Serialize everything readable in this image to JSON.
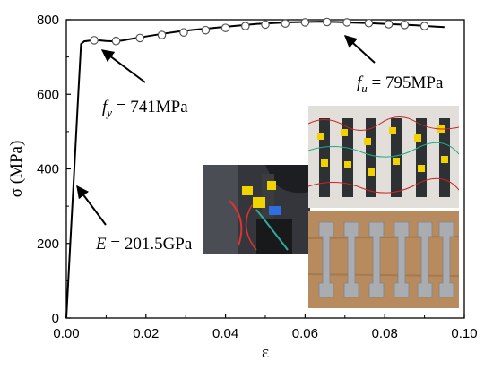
{
  "chart_data": {
    "type": "line",
    "xlabel": "ε",
    "ylabel": "σ (MPa)",
    "xlim": [
      0,
      0.1
    ],
    "ylim": [
      0,
      800
    ],
    "xticks": [
      "0.00",
      "0.02",
      "0.04",
      "0.06",
      "0.08",
      "0.10"
    ],
    "yticks": [
      "0",
      "200",
      "400",
      "600",
      "800"
    ],
    "grid": false,
    "series": [
      {
        "x": [
          0,
          0.001,
          0.002,
          0.003,
          0.0037,
          0.0045,
          0.006,
          0.008,
          0.01,
          0.012,
          0.014,
          0.016,
          0.02,
          0.024,
          0.028,
          0.032,
          0.036,
          0.04,
          0.044,
          0.048,
          0.052,
          0.056,
          0.06,
          0.064,
          0.068,
          0.072,
          0.076,
          0.08,
          0.084,
          0.088,
          0.092,
          0.095
        ],
        "y": [
          0,
          200,
          400,
          600,
          735,
          742,
          744,
          745,
          743,
          742,
          744,
          748,
          755,
          762,
          768,
          773,
          777,
          781,
          785,
          789,
          791,
          793,
          794,
          795,
          794,
          792,
          791,
          789,
          787,
          785,
          782,
          780
        ],
        "markers": {
          "x": [
            0.007,
            0.0125,
            0.0185,
            0.024,
            0.0295,
            0.035,
            0.04,
            0.045,
            0.05,
            0.055,
            0.06,
            0.0655,
            0.0705,
            0.076,
            0.081,
            0.085,
            0.09
          ],
          "y": [
            745,
            743,
            751,
            759,
            766,
            772,
            778,
            783,
            787,
            790,
            793,
            794,
            793,
            791,
            788,
            786,
            783
          ]
        }
      }
    ],
    "annotations": [
      {
        "symbol": "f",
        "subscript": "y",
        "value": " = 741MPa"
      },
      {
        "symbol": "f",
        "subscript": "u",
        "value": " = 795MPa"
      },
      {
        "symbol": "E",
        "subscript": "",
        "value": " = 201.5GPa"
      }
    ]
  },
  "photos": {
    "top_right": "specimens-with-strain-gauges-photo",
    "bottom_right": "dog-bone-specimens-photo",
    "left": "test-setup-photo"
  }
}
